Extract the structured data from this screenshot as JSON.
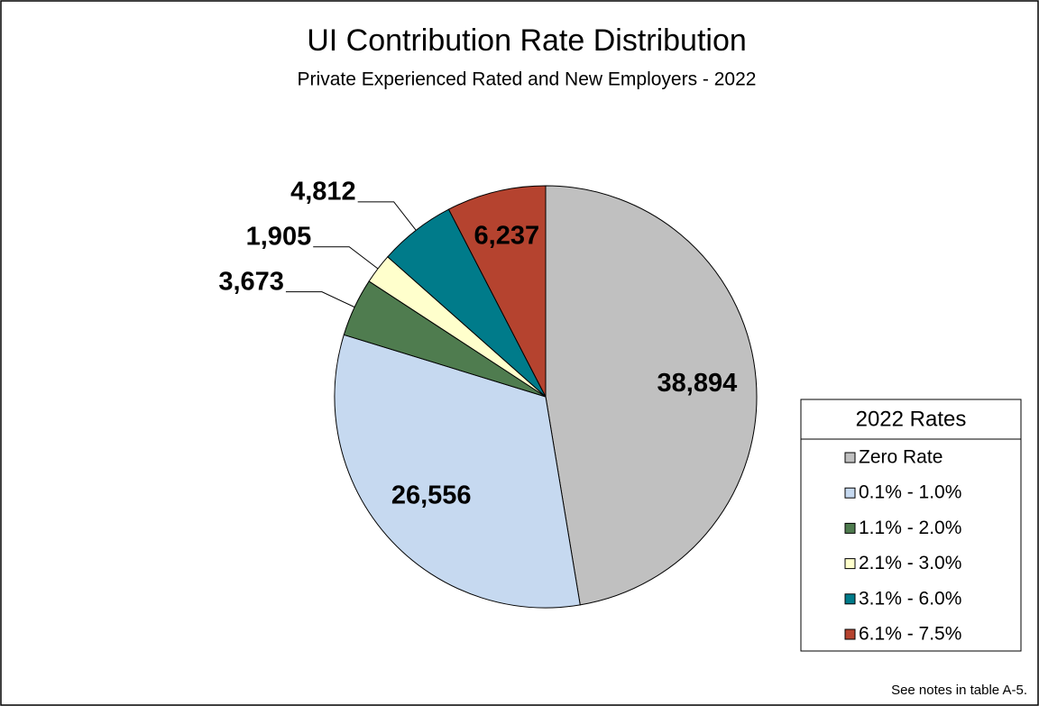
{
  "chart_data": {
    "type": "pie",
    "title": "UI Contribution Rate Distribution",
    "subtitle": "Private Experienced Rated and New Employers - 2022",
    "legend_title": "2022 Rates",
    "legend": "right",
    "categories": [
      "Zero Rate",
      "0.1% - 1.0%",
      "1.1% - 2.0%",
      "2.1% - 3.0%",
      "3.1% - 6.0%",
      "6.1% - 7.5%"
    ],
    "values": [
      38894,
      26556,
      3673,
      1905,
      4812,
      6237
    ],
    "value_labels": [
      "38,894",
      "26,556",
      "3,673",
      "1,905",
      "4,812",
      "6,237"
    ],
    "colors": [
      "#c0c0c0",
      "#c6d9f0",
      "#4f7c4f",
      "#ffffcc",
      "#007b8a",
      "#b5432f"
    ],
    "note": "See notes in table A-5."
  }
}
